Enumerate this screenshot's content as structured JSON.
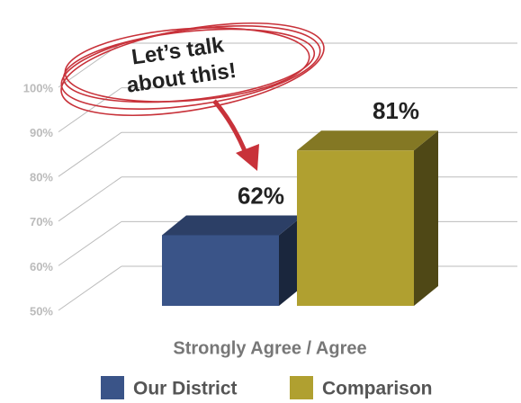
{
  "chart_data": {
    "type": "bar3d",
    "annotation": [
      "Let’s talk",
      "about this!"
    ],
    "x_label": "Strongly Agree / Agree",
    "categories": [
      "Strongly Agree / Agree"
    ],
    "series": [
      {
        "name": "Our District",
        "color": "#3a5488",
        "values": [
          62
        ],
        "value_labels": [
          "62%"
        ]
      },
      {
        "name": "Comparison",
        "color": "#b0a030",
        "values": [
          81
        ],
        "value_labels": [
          "81%"
        ]
      }
    ],
    "ylim": [
      50,
      100
    ],
    "yticks": [
      {
        "value": 50,
        "label": "50%"
      },
      {
        "value": 60,
        "label": "60%"
      },
      {
        "value": 70,
        "label": "70%"
      },
      {
        "value": 80,
        "label": "80%"
      },
      {
        "value": 90,
        "label": "90%"
      },
      {
        "value": 100,
        "label": "100%"
      }
    ],
    "grid": true
  }
}
